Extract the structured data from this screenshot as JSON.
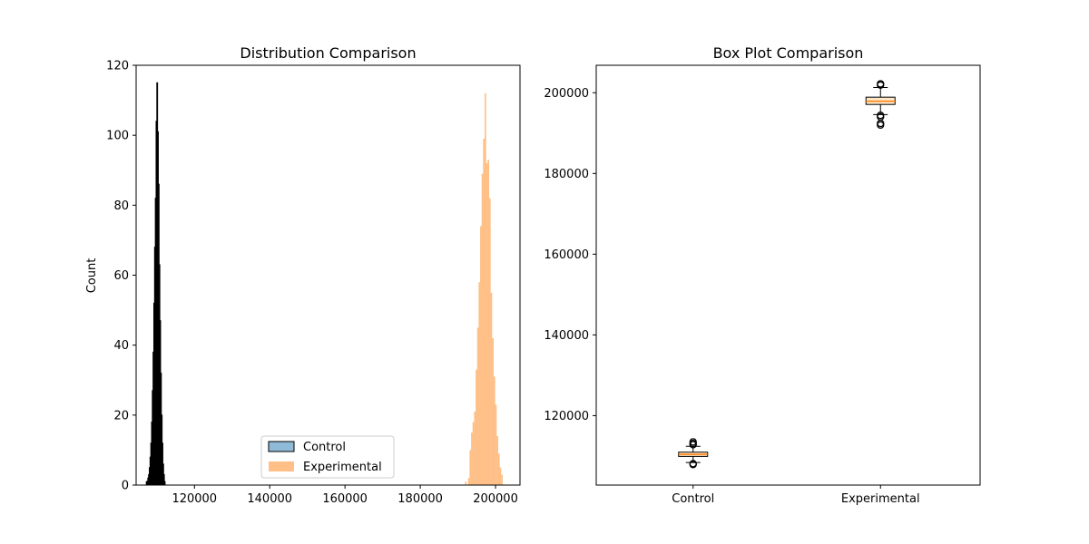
{
  "chart_data": [
    {
      "type": "histogram",
      "title": "Distribution Comparison",
      "xlabel": "",
      "ylabel": "Count",
      "xlim": [
        104500,
        206500
      ],
      "ylim": [
        0,
        120
      ],
      "xticks": [
        120000,
        140000,
        160000,
        180000,
        200000
      ],
      "yticks": [
        0,
        20,
        40,
        60,
        80,
        100,
        120
      ],
      "legend": {
        "position": "bottom-center"
      },
      "series": [
        {
          "name": "Control",
          "color": "#1f77b4",
          "edge_color": "#000000",
          "bin_width": 200,
          "bins": [
            [
              107200,
              1
            ],
            [
              107400,
              1
            ],
            [
              107600,
              2
            ],
            [
              107800,
              3
            ],
            [
              108000,
              5
            ],
            [
              108200,
              8
            ],
            [
              108400,
              12
            ],
            [
              108600,
              18
            ],
            [
              108800,
              27
            ],
            [
              109000,
              38
            ],
            [
              109200,
              52
            ],
            [
              109400,
              68
            ],
            [
              109600,
              82
            ],
            [
              109800,
              104
            ],
            [
              110000,
              115
            ],
            [
              110200,
              101
            ],
            [
              110400,
              86
            ],
            [
              110600,
              63
            ],
            [
              110800,
              47
            ],
            [
              111000,
              32
            ],
            [
              111200,
              20
            ],
            [
              111400,
              12
            ],
            [
              111600,
              6
            ],
            [
              111800,
              3
            ],
            [
              112000,
              1
            ]
          ]
        },
        {
          "name": "Experimental",
          "color": "#ff7f0e",
          "bin_width": 400,
          "bins": [
            [
              191900,
              1
            ],
            [
              192700,
              2
            ],
            [
              193100,
              10
            ],
            [
              193500,
              15
            ],
            [
              193900,
              18
            ],
            [
              194300,
              21
            ],
            [
              194700,
              33
            ],
            [
              195100,
              45
            ],
            [
              195500,
              58
            ],
            [
              195900,
              74
            ],
            [
              196300,
              89
            ],
            [
              196700,
              99
            ],
            [
              197100,
              112
            ],
            [
              197500,
              92
            ],
            [
              197900,
              93
            ],
            [
              198300,
              82
            ],
            [
              198700,
              55
            ],
            [
              199100,
              42
            ],
            [
              199500,
              31
            ],
            [
              199900,
              23
            ],
            [
              200300,
              14
            ],
            [
              200700,
              9
            ],
            [
              201100,
              5
            ],
            [
              201500,
              3
            ]
          ]
        }
      ]
    },
    {
      "type": "box",
      "title": "Box Plot Comparison",
      "xlabel": "",
      "ylabel": "",
      "ylim": [
        102800,
        206800
      ],
      "yticks": [
        120000,
        140000,
        160000,
        180000,
        200000
      ],
      "categories": [
        "Control",
        "Experimental"
      ],
      "box_fill": "#ffe8c8",
      "median_color": "#ff7f0e",
      "boxes": [
        {
          "name": "Control",
          "whisker_low": 108400,
          "q1": 109900,
          "median": 110400,
          "q3": 110950,
          "whisker_high": 112400,
          "outliers": [
            107900,
            108100,
            112800,
            113100,
            113500
          ]
        },
        {
          "name": "Experimental",
          "whisker_low": 194600,
          "q1": 197100,
          "median": 197900,
          "q3": 198900,
          "whisker_high": 201300,
          "outliers": [
            192000,
            192400,
            194000,
            194400,
            201900,
            202200
          ]
        }
      ]
    }
  ]
}
